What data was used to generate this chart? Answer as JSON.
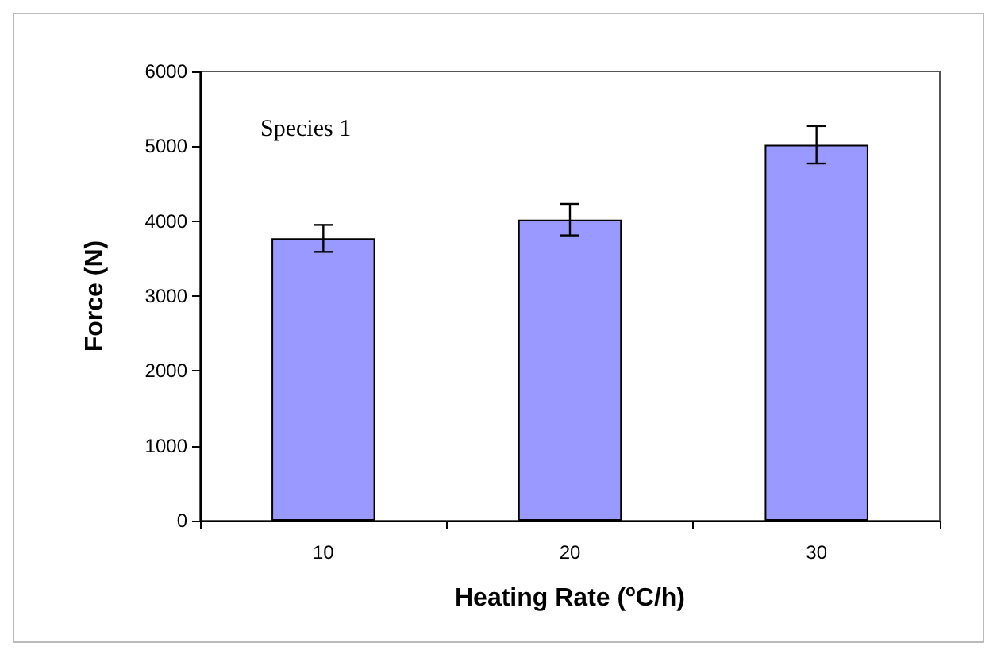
{
  "chart_data": {
    "type": "bar",
    "xlabel": "Heating Rate ($^{o}$C/h)",
    "ylabel": "Force (N)",
    "annotations": [
      "Species 1"
    ],
    "categories": [
      "10",
      "20",
      "30"
    ],
    "values": [
      3770,
      4020,
      5020
    ],
    "errors": [
      180,
      210,
      250
    ],
    "color": "#9999ff",
    "ylim": [
      0,
      6000
    ],
    "yticks": [
      0,
      1000,
      2000,
      3000,
      4000,
      5000,
      6000
    ],
    "grid": false
  }
}
